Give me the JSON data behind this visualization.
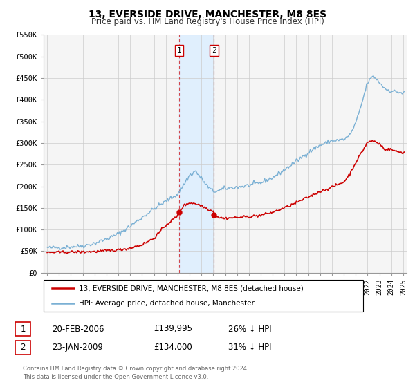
{
  "title": "13, EVERSIDE DRIVE, MANCHESTER, M8 8ES",
  "subtitle": "Price paid vs. HM Land Registry's House Price Index (HPI)",
  "legend_label_red": "13, EVERSIDE DRIVE, MANCHESTER, M8 8ES (detached house)",
  "legend_label_blue": "HPI: Average price, detached house, Manchester",
  "footnote1": "Contains HM Land Registry data © Crown copyright and database right 2024.",
  "footnote2": "This data is licensed under the Open Government Licence v3.0.",
  "transaction1_date": "20-FEB-2006",
  "transaction1_price": "£139,995",
  "transaction1_hpi": "26% ↓ HPI",
  "transaction2_date": "23-JAN-2009",
  "transaction2_price": "£134,000",
  "transaction2_hpi": "31% ↓ HPI",
  "color_red": "#cc0000",
  "color_blue": "#7ab0d4",
  "color_shade": "#ddeeff",
  "ylim": [
    0,
    550000
  ],
  "yticks": [
    0,
    50000,
    100000,
    150000,
    200000,
    250000,
    300000,
    350000,
    400000,
    450000,
    500000,
    550000
  ],
  "ytick_labels": [
    "£0",
    "£50K",
    "£100K",
    "£150K",
    "£200K",
    "£250K",
    "£300K",
    "£350K",
    "£400K",
    "£450K",
    "£500K",
    "£550K"
  ],
  "xlim_start": 1994.7,
  "xlim_end": 2025.3,
  "transaction1_x": 2006.12,
  "transaction1_y": 139995,
  "transaction2_x": 2009.06,
  "transaction2_y": 134000,
  "grid_color": "#cccccc",
  "background_color": "#f5f5f5"
}
